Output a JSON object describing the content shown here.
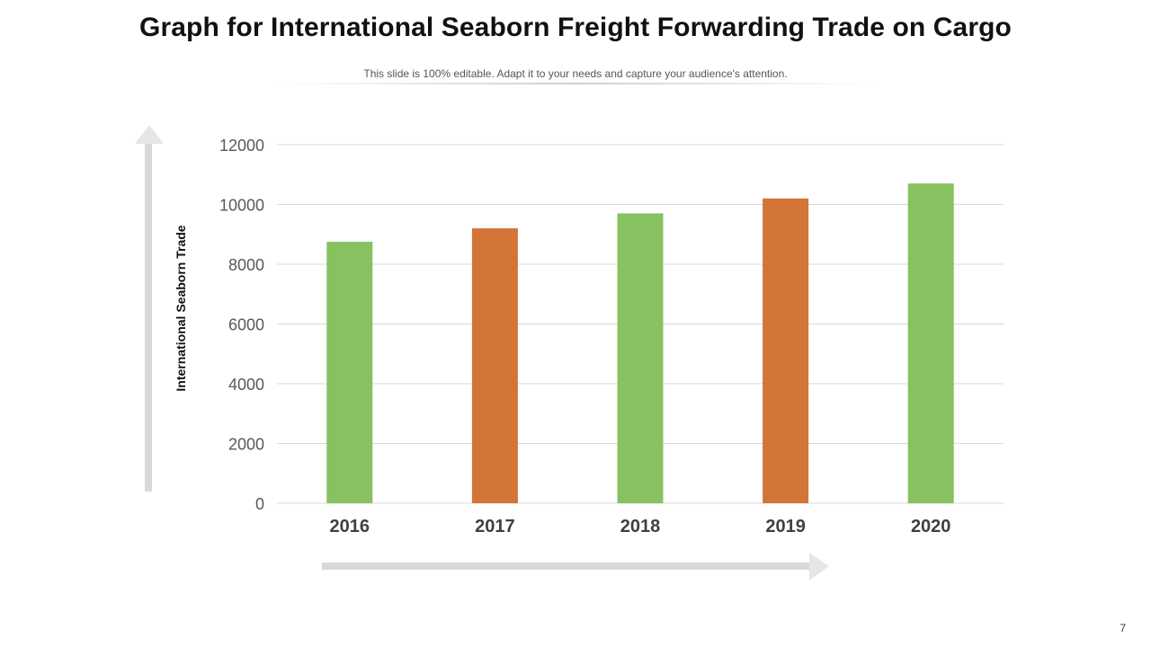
{
  "title": "Graph for International Seaborn Freight Forwarding Trade on Cargo",
  "subtitle": "This slide is 100% editable. Adapt it to your needs and capture your audience's attention.",
  "page_number": "7",
  "colors": {
    "green": "#88C160",
    "orange": "#D27537",
    "grid": "#D9D9D9",
    "arrow": "#D9D9D9"
  },
  "chart_data": {
    "type": "bar",
    "title": "",
    "xlabel": "",
    "ylabel": "International Seaborn Trade",
    "categories": [
      "2016",
      "2017",
      "2018",
      "2019",
      "2020"
    ],
    "values": [
      8750,
      9200,
      9700,
      10200,
      10700
    ],
    "bar_colors": [
      "#88C160",
      "#D27537",
      "#88C160",
      "#D27537",
      "#88C160"
    ],
    "ylim": [
      0,
      12000
    ],
    "yticks": [
      "0",
      "2000",
      "4000",
      "6000",
      "8000",
      "10000",
      "12000"
    ],
    "grid": true,
    "legend": "none"
  }
}
